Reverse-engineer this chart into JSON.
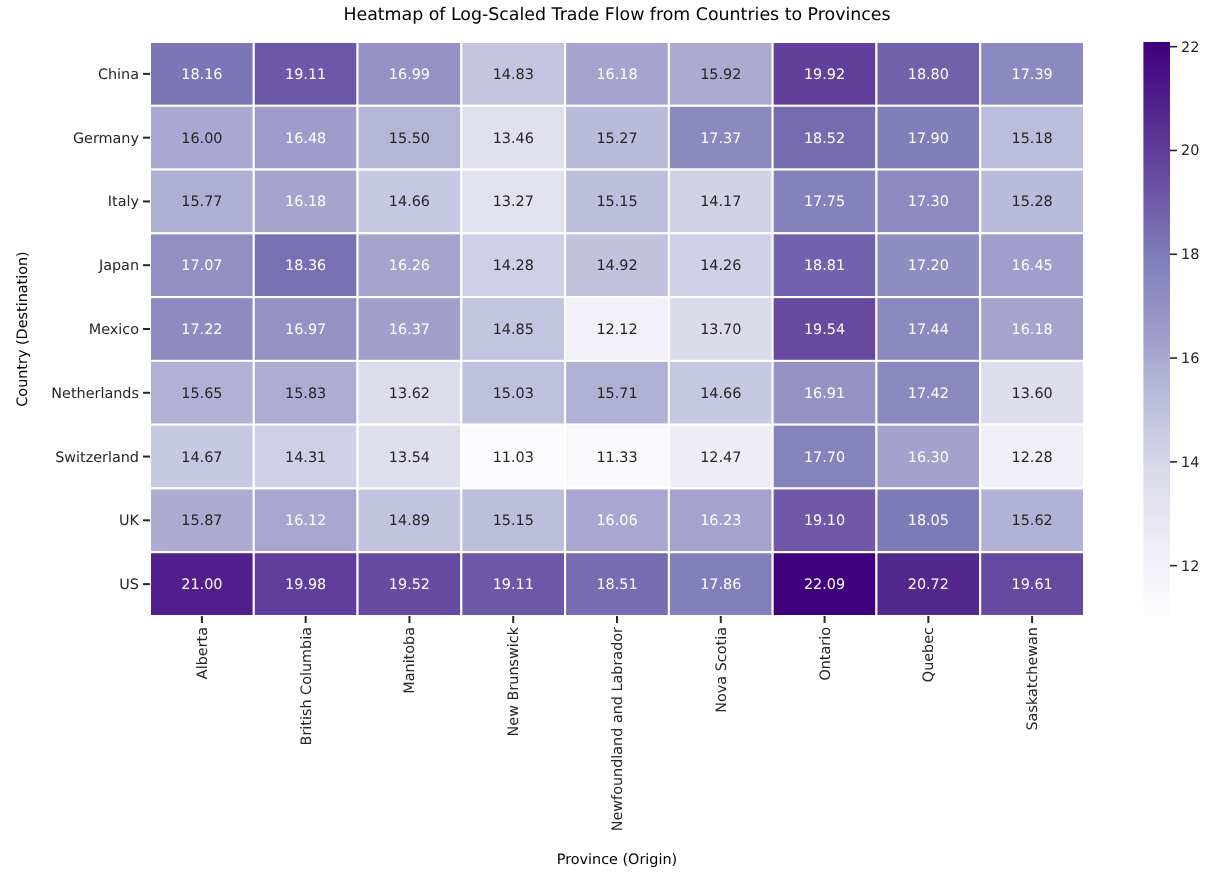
{
  "chart_data": {
    "type": "heatmap",
    "title": "Heatmap of Log-Scaled Trade Flow from Countries to Provinces",
    "xlabel": "Province (Origin)",
    "ylabel": "Country (Destination)",
    "categories": [
      "Alberta",
      "British Columbia",
      "Manitoba",
      "New Brunswick",
      "Newfoundland and Labrador",
      "Nova Scotia",
      "Ontario",
      "Quebec",
      "Saskatchewan"
    ],
    "y_categories": [
      "China",
      "Germany",
      "Italy",
      "Japan",
      "Mexico",
      "Netherlands",
      "Switzerland",
      "UK",
      "US"
    ],
    "cells": [
      [
        18.16,
        19.11,
        16.99,
        14.83,
        16.18,
        15.92,
        19.92,
        18.8,
        17.39
      ],
      [
        16.0,
        16.48,
        15.5,
        13.46,
        15.27,
        17.37,
        18.52,
        17.9,
        15.18
      ],
      [
        15.77,
        16.18,
        14.66,
        13.27,
        15.15,
        14.17,
        17.75,
        17.3,
        15.28
      ],
      [
        17.07,
        18.36,
        16.26,
        14.28,
        14.92,
        14.26,
        18.81,
        17.2,
        16.45
      ],
      [
        17.22,
        16.97,
        16.37,
        14.85,
        12.12,
        13.7,
        19.54,
        17.44,
        16.18
      ],
      [
        15.65,
        15.83,
        13.62,
        15.03,
        15.71,
        14.66,
        16.91,
        17.42,
        13.6
      ],
      [
        14.67,
        14.31,
        13.54,
        11.03,
        11.33,
        12.47,
        17.7,
        16.3,
        12.28
      ],
      [
        15.87,
        16.12,
        14.89,
        15.15,
        16.06,
        16.23,
        19.1,
        18.05,
        15.62
      ],
      [
        21.0,
        19.98,
        19.52,
        19.11,
        18.51,
        17.86,
        22.09,
        20.72,
        19.61
      ]
    ],
    "cell_labels": [
      [
        "18.16",
        "19.11",
        "16.99",
        "14.83",
        "16.18",
        "15.92",
        "19.92",
        "18.80",
        "17.39"
      ],
      [
        "16.00",
        "16.48",
        "15.50",
        "13.46",
        "15.27",
        "17.37",
        "18.52",
        "17.90",
        "15.18"
      ],
      [
        "15.77",
        "16.18",
        "14.66",
        "13.27",
        "15.15",
        "14.17",
        "17.75",
        "17.30",
        "15.28"
      ],
      [
        "17.07",
        "18.36",
        "16.26",
        "14.28",
        "14.92",
        "14.26",
        "18.81",
        "17.20",
        "16.45"
      ],
      [
        "17.22",
        "16.97",
        "16.37",
        "14.85",
        "12.12",
        "13.70",
        "19.54",
        "17.44",
        "16.18"
      ],
      [
        "15.65",
        "15.83",
        "13.62",
        "15.03",
        "15.71",
        "14.66",
        "16.91",
        "17.42",
        "13.60"
      ],
      [
        "14.67",
        "14.31",
        "13.54",
        "11.03",
        "11.33",
        "12.47",
        "17.70",
        "16.30",
        "12.28"
      ],
      [
        "15.87",
        "16.12",
        "14.89",
        "15.15",
        "16.06",
        "16.23",
        "19.10",
        "18.05",
        "15.62"
      ],
      [
        "21.00",
        "19.98",
        "19.52",
        "19.11",
        "18.51",
        "17.86",
        "22.09",
        "20.72",
        "19.61"
      ]
    ],
    "clim": [
      11.03,
      22.09
    ],
    "cticks": [
      12,
      14,
      16,
      18,
      20,
      22
    ]
  }
}
